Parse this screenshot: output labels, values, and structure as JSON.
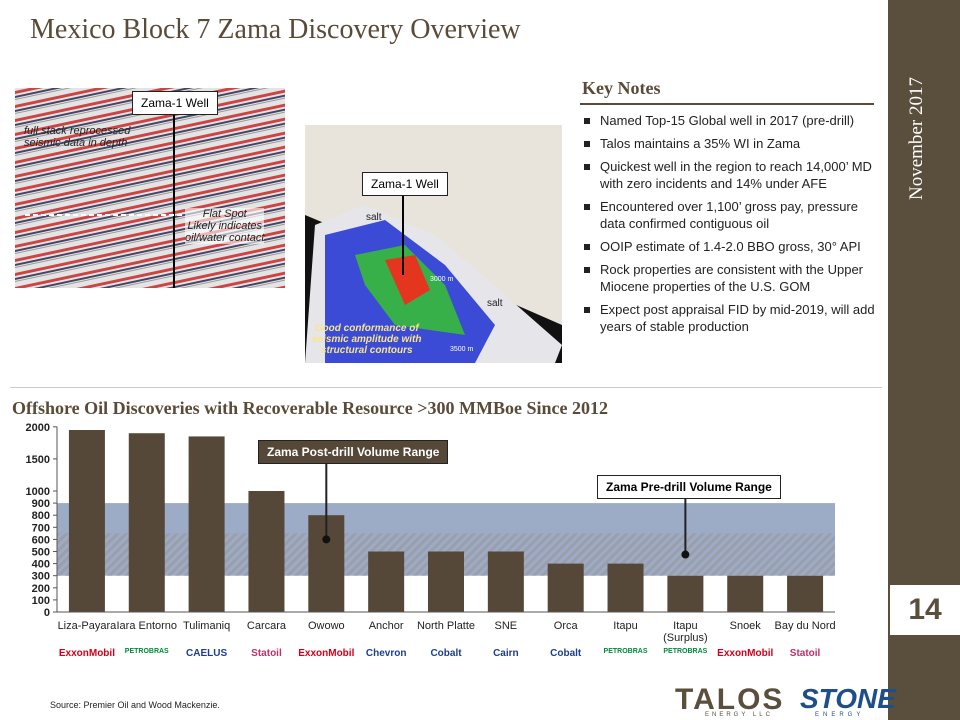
{
  "title": "Mexico Block 7 Zama Discovery Overview",
  "date": "November 2017",
  "page_number": "14",
  "seismic_left": {
    "well_label": "Zama-1 Well",
    "caption": [
      "full stack reprocessed",
      "seismic data in depth"
    ],
    "flat_spot": [
      "Flat Spot",
      "Likely indicates",
      "oil/water contact"
    ]
  },
  "seismic_right": {
    "well_label": "Zama-1 Well",
    "salt_labels": [
      "salt",
      "salt"
    ],
    "contour_labels": [
      "3000 m",
      "3500 m"
    ],
    "caption": [
      "Good conformance of",
      "seismic amplitude with",
      "structural contours"
    ]
  },
  "key_notes": {
    "title": "Key Notes",
    "items": [
      "Named Top-15 Global well in 2017 (pre-drill)",
      "Talos maintains a 35% WI in Zama",
      "Quickest well in the region to reach 14,000’ MD with zero incidents and 14% under AFE",
      "Encountered over 1,100’ gross pay, pressure data confirmed contiguous oil",
      "OOIP estimate of 1.4-2.0 BBO gross, 30° API",
      "Rock properties are consistent with the Upper Miocene properties of the U.S. GOM",
      "Expect post appraisal FID by mid-2019, will add years of stable production"
    ]
  },
  "chart_data": {
    "type": "bar",
    "title": "Offshore Oil Discoveries with Recoverable Resource >300 MMBoe Since 2012",
    "categories": [
      "Liza-Payara",
      "Iara Entorno",
      "Tulimaniq",
      "Carcara",
      "Owowo",
      "Anchor",
      "North Platte",
      "SNE",
      "Orca",
      "Itapu",
      "Itapu (Surplus)",
      "Snoek",
      "Bay du Nord"
    ],
    "values": [
      1950,
      1900,
      1850,
      1000,
      800,
      500,
      500,
      500,
      400,
      400,
      300,
      300,
      300
    ],
    "color": "#554838",
    "ylim": [
      0,
      2000
    ],
    "yticks": [
      0,
      100,
      200,
      300,
      400,
      500,
      600,
      700,
      800,
      900,
      1000,
      1500,
      2000
    ],
    "ranges": [
      {
        "label": "Zama Post-drill Volume Range",
        "low": 300,
        "high": 900,
        "color": "#8396b8"
      },
      {
        "label": "Zama Pre-drill Volume Range",
        "low": 300,
        "high": 650,
        "color": "#c9c0b0"
      }
    ]
  },
  "logos": [
    "ExxonMobil",
    "PETROBRAS",
    "CAELUS",
    "Statoil",
    "ExxonMobil",
    "Chevron",
    "Cobalt",
    "Cairn",
    "Cobalt",
    "PETROBRAS",
    "PETROBRAS",
    "ExxonMobil",
    "Statoil"
  ],
  "source": "Source: Premier Oil and Wood Mackenzie.",
  "footer_logos": {
    "talos": "TALOS",
    "talos_sub": "ENERGY LLC",
    "stone": "STONE",
    "stone_sub": "ENERGY"
  }
}
